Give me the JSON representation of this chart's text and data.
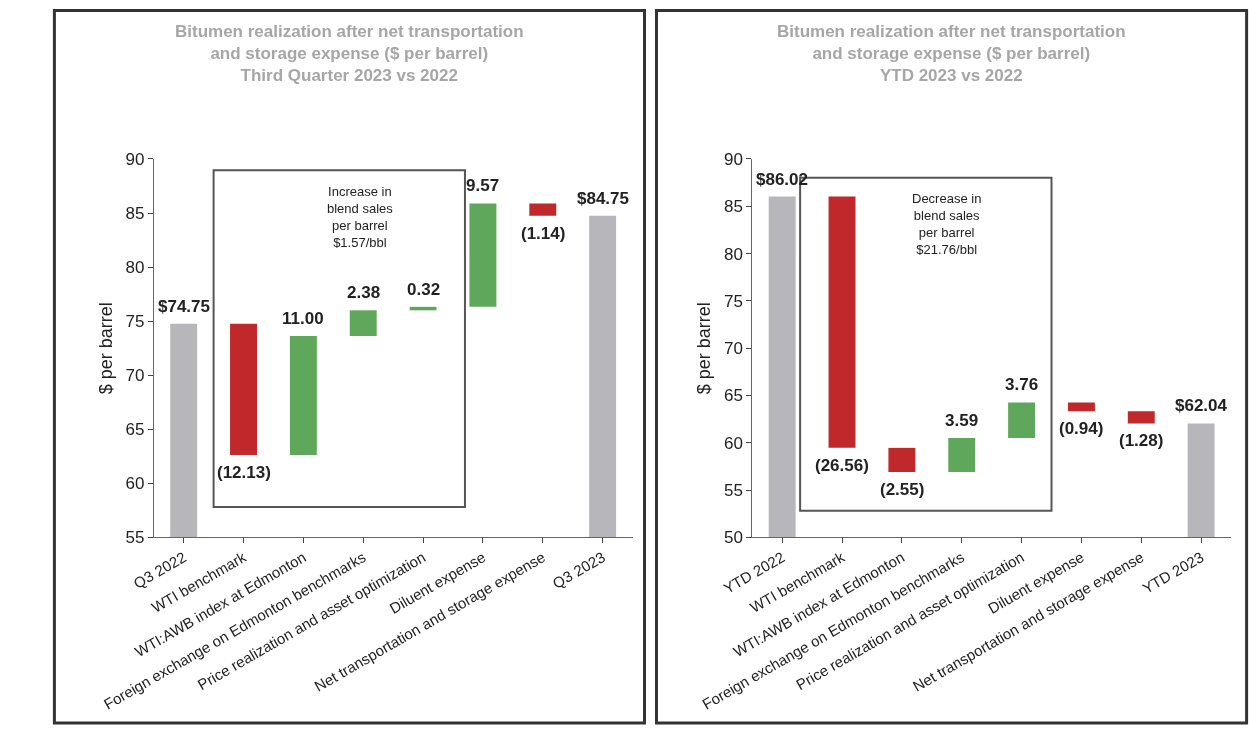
{
  "chart_data": [
    {
      "type": "bar",
      "title": "Bitumen realization after net transportation\nand storage expense ($ per barrel)\nThird Quarter 2023 vs 2022",
      "ylabel": "$ per barrel",
      "categories": [
        "Q3 2022",
        "WTI benchmark",
        "WTI:AWB index at Edmonton",
        "Foreign exchange on Edmonton benchmarks",
        "Price realization and asset optimization",
        "Diluent expense",
        "Net transportation and storage expense",
        "Q3 2023"
      ],
      "values": [
        74.75,
        -12.13,
        11.0,
        2.38,
        0.32,
        9.57,
        -1.14,
        84.75
      ],
      "base": [
        null,
        74.75,
        62.62,
        73.62,
        76.0,
        76.32,
        85.89,
        null
      ],
      "colors": [
        "#b7b7bb",
        "#c0282b",
        "#5fa85b",
        "#5fa85b",
        "#5fa85b",
        "#5fa85b",
        "#c0282b",
        "#b7b7bb"
      ],
      "value_labels": [
        "$74.75",
        "(12.13)",
        "11.00",
        "2.38",
        "0.32",
        "9.57",
        "(1.14)",
        "$84.75"
      ],
      "ylim": [
        55,
        90
      ],
      "yticks": [
        55,
        60,
        65,
        70,
        75,
        80,
        85,
        90
      ],
      "legend": false,
      "annotations": [
        "Increase in\nblend sales\nper barrel\n$1.57/bbl"
      ]
    },
    {
      "type": "bar",
      "title": "Bitumen realization after net transportation\nand storage expense ($ per barrel)\nYTD 2023 vs 2022",
      "ylabel": "$ per barrel",
      "categories": [
        "YTD 2022",
        "WTI benchmark",
        "WTI:AWB index at Edmonton",
        "Foreign exchange on Edmonton benchmarks",
        "Price realization and asset optimization",
        "Diluent expense",
        "Net transportation and storage expense",
        "YTD 2023"
      ],
      "values": [
        86.02,
        -26.56,
        -2.55,
        3.59,
        3.76,
        -0.94,
        -1.28,
        62.04
      ],
      "base": [
        null,
        86.02,
        59.46,
        56.91,
        60.5,
        64.26,
        63.32,
        null
      ],
      "colors": [
        "#b7b7bb",
        "#c0282b",
        "#c0282b",
        "#5fa85b",
        "#5fa85b",
        "#c0282b",
        "#c0282b",
        "#b7b7bb"
      ],
      "value_labels": [
        "$86.02",
        "(26.56)",
        "(2.55)",
        "3.59",
        "3.76",
        "(0.94)",
        "(1.28)",
        "$62.04"
      ],
      "ylim": [
        50,
        90
      ],
      "yticks": [
        50,
        55,
        60,
        65,
        70,
        75,
        80,
        85,
        90
      ],
      "legend": false,
      "annotations": [
        "Decrease in\nblend sales\nper barrel\n$21.76/bbl"
      ]
    }
  ]
}
